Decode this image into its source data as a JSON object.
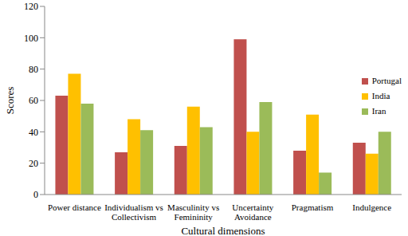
{
  "chart_data": {
    "type": "bar",
    "x_label": "Cultural dimensions",
    "y_label": "Scores",
    "categories": [
      "Power distance",
      "Individualism vs Collectivism",
      "Masculinity vs Femininity",
      "Uncertainty Avoidance",
      "Pragmatism",
      "Indulgence"
    ],
    "series": [
      {
        "name": "Portugal",
        "color": "#c0504d",
        "values": [
          63,
          27,
          31,
          99,
          28,
          33
        ]
      },
      {
        "name": "India",
        "color": "#ffc000",
        "values": [
          77,
          48,
          56,
          40,
          51,
          26
        ]
      },
      {
        "name": "Iran",
        "color": "#9bbb59",
        "values": [
          58,
          41,
          43,
          59,
          14,
          40
        ]
      }
    ],
    "ylim": [
      0,
      120
    ],
    "yticks": [
      0,
      20,
      40,
      60,
      80,
      100,
      120
    ],
    "grid": false,
    "legend": "right"
  }
}
